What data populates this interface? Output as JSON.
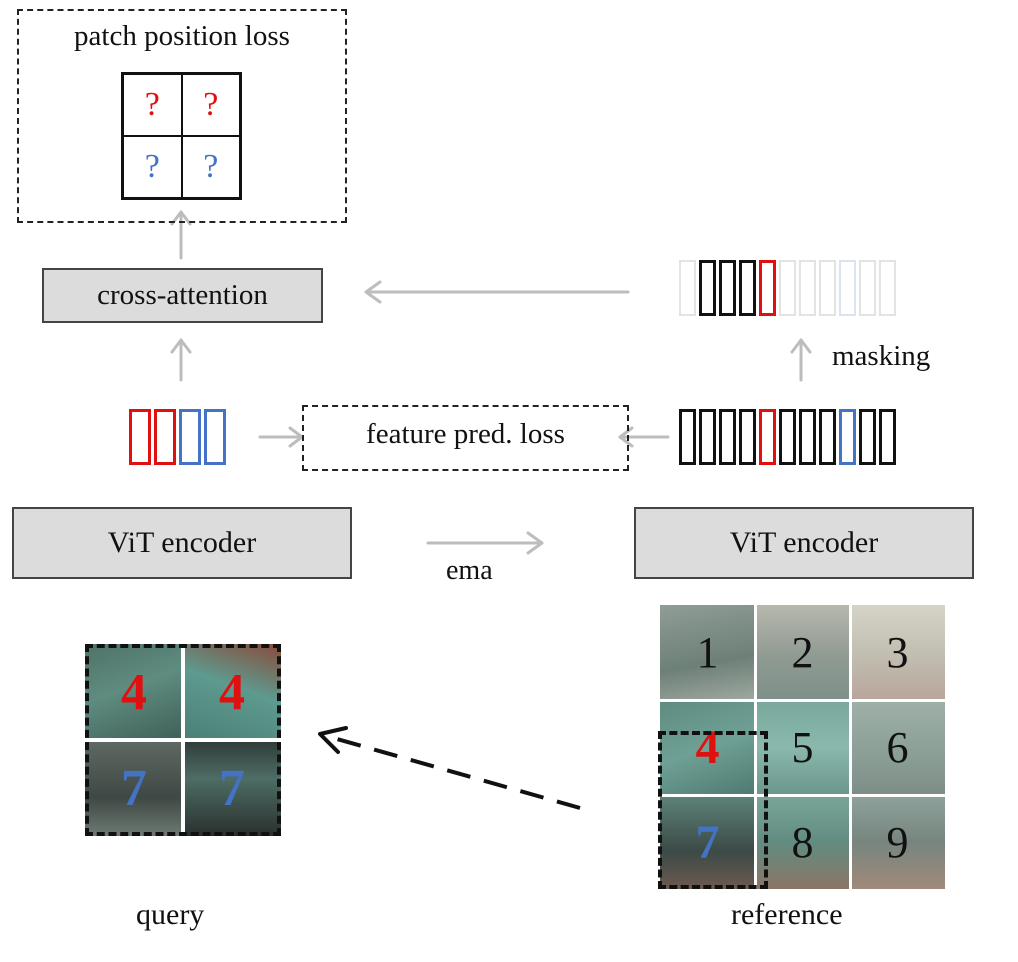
{
  "position_loss": {
    "title": "patch position loss",
    "cells": [
      {
        "text": "?",
        "color": "#e01010"
      },
      {
        "text": "?",
        "color": "#e01010"
      },
      {
        "text": "?",
        "color": "#4472c4"
      },
      {
        "text": "?",
        "color": "#4472c4"
      }
    ]
  },
  "cross_attention": {
    "label": "cross-attention"
  },
  "masking": {
    "label": "masking"
  },
  "feature_loss": {
    "label": "feature pred. loss"
  },
  "encoder_left": {
    "label": "ViT encoder"
  },
  "encoder_right": {
    "label": "ViT encoder"
  },
  "ema": {
    "label": "ema"
  },
  "query": {
    "label": "query",
    "patches": [
      "4",
      "4",
      "7",
      "7"
    ]
  },
  "reference": {
    "label": "reference",
    "patches": [
      "1",
      "2",
      "3",
      "4",
      "5",
      "6",
      "7",
      "8",
      "9"
    ]
  },
  "colors": {
    "red": "#e01010",
    "blue": "#4472c4",
    "box_gray": "#dcdcdc",
    "arrow_gray": "#bdbdbd"
  }
}
